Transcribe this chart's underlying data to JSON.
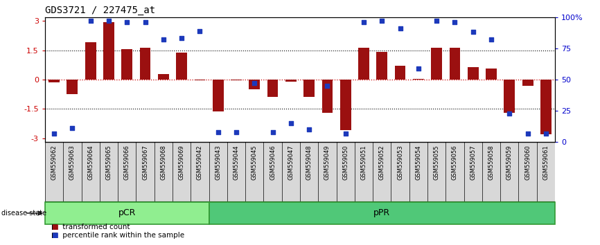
{
  "title": "GDS3721 / 227475_at",
  "samples": [
    "GSM559062",
    "GSM559063",
    "GSM559064",
    "GSM559065",
    "GSM559066",
    "GSM559067",
    "GSM559068",
    "GSM559069",
    "GSM559042",
    "GSM559043",
    "GSM559044",
    "GSM559045",
    "GSM559046",
    "GSM559047",
    "GSM559048",
    "GSM559049",
    "GSM559050",
    "GSM559051",
    "GSM559052",
    "GSM559053",
    "GSM559054",
    "GSM559055",
    "GSM559056",
    "GSM559057",
    "GSM559058",
    "GSM559059",
    "GSM559060",
    "GSM559061"
  ],
  "bar_values": [
    -0.15,
    -0.75,
    1.9,
    2.95,
    1.55,
    1.62,
    0.28,
    1.38,
    -0.05,
    -1.62,
    -0.05,
    -0.5,
    -0.9,
    -0.1,
    -0.9,
    -1.7,
    -2.6,
    1.62,
    1.42,
    0.72,
    0.05,
    1.65,
    1.62,
    0.65,
    0.58,
    -1.7,
    -0.3,
    -2.8
  ],
  "percentile_values": [
    7,
    11,
    97,
    97,
    96,
    96,
    82,
    83,
    89,
    8,
    8,
    47,
    8,
    15,
    10,
    45,
    7,
    96,
    97,
    91,
    59,
    97,
    96,
    88,
    82,
    23,
    7,
    7
  ],
  "pcr_count": 9,
  "ppr_count": 19,
  "bar_color": "#9B1010",
  "dot_color": "#1C39BB",
  "pcr_color": "#90EE90",
  "ppr_color": "#50C878",
  "label_color_left": "#CC0000",
  "label_color_right": "#0000CC",
  "ylim": [
    -3.2,
    3.2
  ],
  "yticks": [
    -3,
    -1.5,
    0,
    1.5,
    3
  ],
  "right_yticks": [
    0,
    25,
    50,
    75,
    100
  ],
  "right_ylabels": [
    "0",
    "25",
    "50",
    "75",
    "100%"
  ],
  "zero_line_color": "#CC0000",
  "grid_color": "#000000",
  "legend_bar_label": "transformed count",
  "legend_dot_label": "percentile rank within the sample",
  "disease_state_label": "disease state"
}
